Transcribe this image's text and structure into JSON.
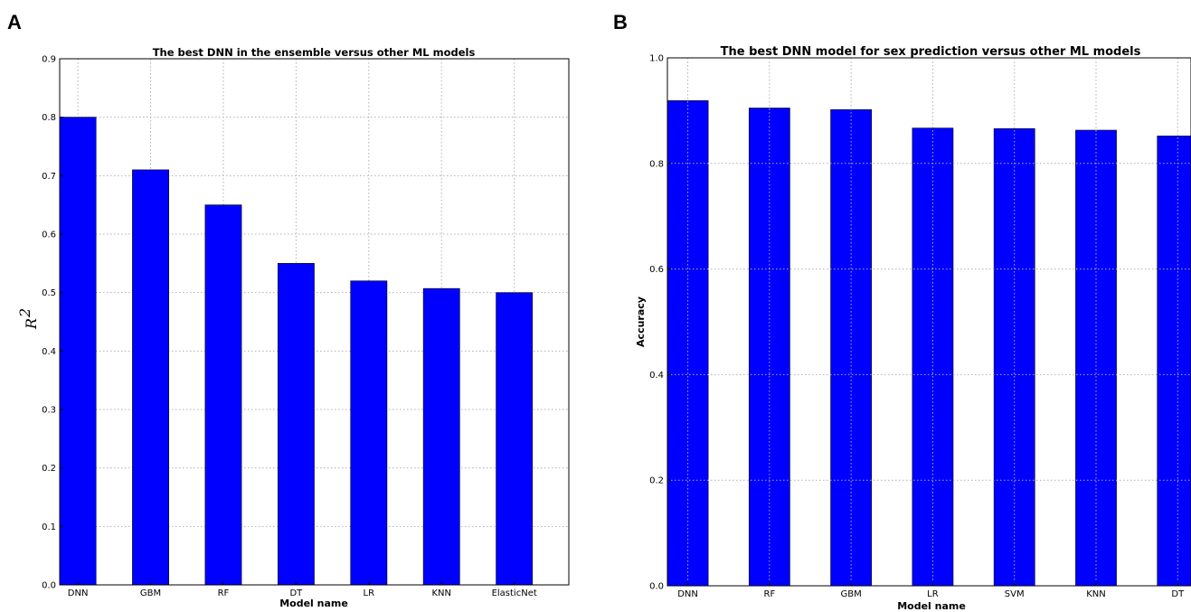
{
  "panels": [
    {
      "label": "A"
    },
    {
      "label": "B"
    }
  ],
  "chart_data": [
    {
      "type": "bar",
      "title": "The best DNN in the ensemble versus other ML models",
      "xlabel": "Model name",
      "ylabel": "R",
      "ylabel_superscript": "2",
      "categories": [
        "DNN",
        "GBM",
        "RF",
        "DT",
        "LR",
        "KNN",
        "ElasticNet"
      ],
      "values": [
        0.8,
        0.71,
        0.65,
        0.55,
        0.52,
        0.507,
        0.5
      ],
      "ylim": [
        0.0,
        0.9
      ],
      "yticks": [
        "0.0",
        "0.1",
        "0.2",
        "0.3",
        "0.4",
        "0.5",
        "0.6",
        "0.7",
        "0.8",
        "0.9"
      ],
      "grid": true,
      "bar_color": "#0000ff"
    },
    {
      "type": "bar",
      "title": "The best DNN model for sex prediction versus other ML models",
      "xlabel": "Model name",
      "ylabel": "Accuracy",
      "categories": [
        "DNN",
        "RF",
        "GBM",
        "LR",
        "SVM",
        "KNN",
        "DT"
      ],
      "values": [
        0.919,
        0.905,
        0.902,
        0.867,
        0.866,
        0.863,
        0.852
      ],
      "ylim": [
        0.0,
        1.0
      ],
      "yticks": [
        "0.0",
        "0.2",
        "0.4",
        "0.6",
        "0.8",
        "1.0"
      ],
      "grid": true,
      "bar_color": "#0000ff"
    }
  ]
}
